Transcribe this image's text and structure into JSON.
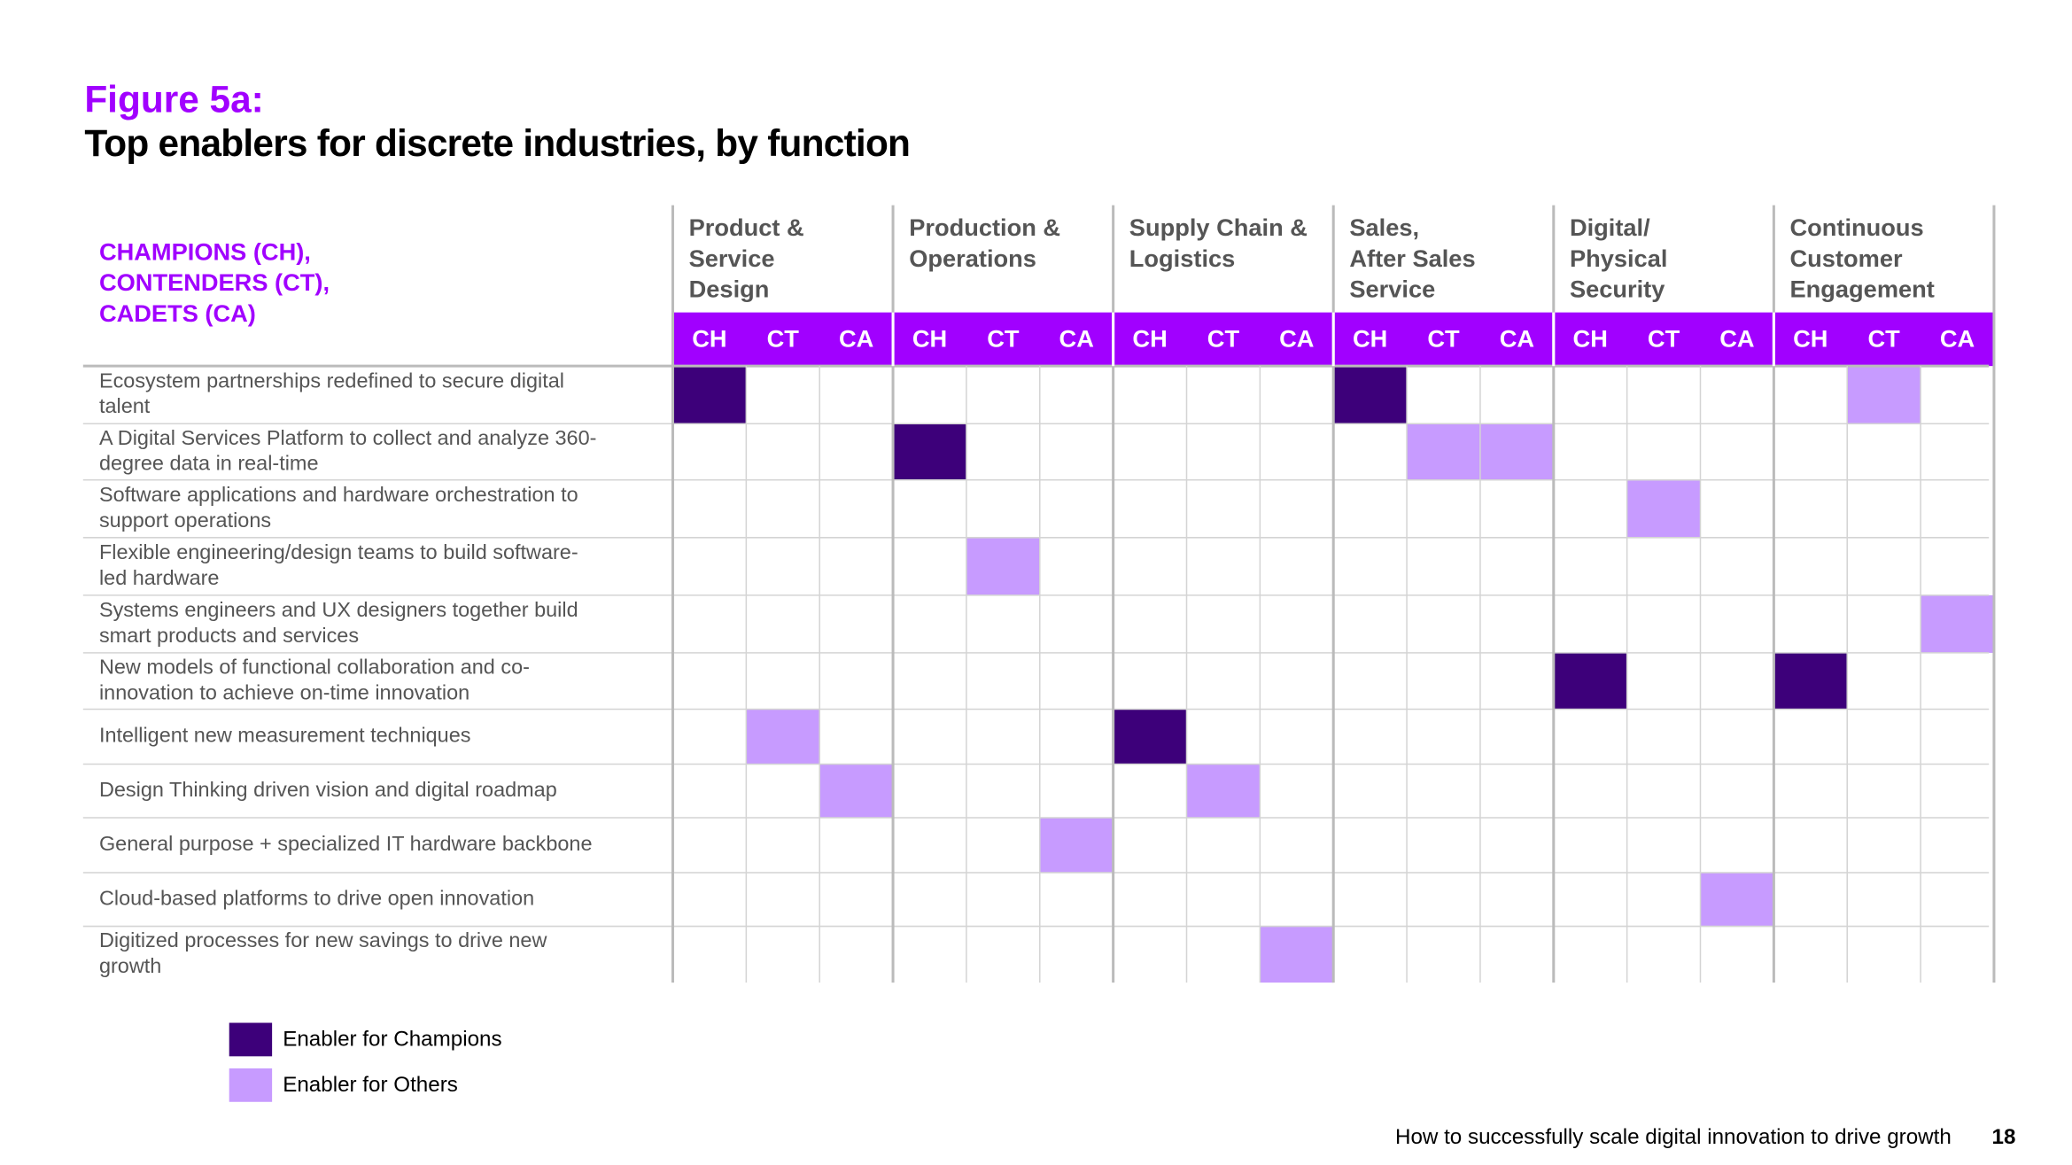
{
  "header": {
    "label": "Figure 5a:",
    "title": "Top enablers for discrete industries, by function"
  },
  "table": {
    "corner": [
      "CHAMPIONS (CH),",
      "CONTENDERS (CT),",
      "CADETS (CA)"
    ],
    "groups": [
      [
        "Product &",
        "Service",
        "Design"
      ],
      [
        "Production &",
        "Operations"
      ],
      [
        "Supply Chain &",
        "Logistics"
      ],
      [
        "Sales,",
        "After Sales",
        "Service"
      ],
      [
        "Digital/",
        "Physical",
        "Security"
      ],
      [
        "Continuous",
        "Customer",
        "Engagement"
      ]
    ],
    "subcolumns": [
      "CH",
      "CT",
      "CA"
    ],
    "rows": [
      {
        "label": [
          "Ecosystem partnerships redefined to secure digital",
          "talent"
        ],
        "cells": [
          "champions",
          null,
          null,
          null,
          null,
          null,
          null,
          null,
          null,
          "champions",
          null,
          null,
          null,
          null,
          null,
          null,
          "others",
          null
        ]
      },
      {
        "label": [
          "A Digital Services Platform to collect and analyze 360-",
          "degree data in real-time"
        ],
        "cells": [
          null,
          null,
          null,
          "champions",
          null,
          null,
          null,
          null,
          null,
          null,
          "others",
          "others",
          null,
          null,
          null,
          null,
          null,
          null
        ]
      },
      {
        "label": [
          "Software applications and hardware orchestration to",
          "support operations"
        ],
        "cells": [
          null,
          null,
          null,
          null,
          null,
          null,
          null,
          null,
          null,
          null,
          null,
          null,
          null,
          "others",
          null,
          null,
          null,
          null
        ]
      },
      {
        "label": [
          "Flexible engineering/design teams to build software-",
          "led hardware"
        ],
        "cells": [
          null,
          null,
          null,
          null,
          "others",
          null,
          null,
          null,
          null,
          null,
          null,
          null,
          null,
          null,
          null,
          null,
          null,
          null
        ]
      },
      {
        "label": [
          "Systems engineers and UX designers together build",
          "smart products and services"
        ],
        "cells": [
          null,
          null,
          null,
          null,
          null,
          null,
          null,
          null,
          null,
          null,
          null,
          null,
          null,
          null,
          null,
          null,
          null,
          "others"
        ]
      },
      {
        "label": [
          "New models of functional collaboration and co-",
          "innovation to achieve on-time innovation"
        ],
        "cells": [
          null,
          null,
          null,
          null,
          null,
          null,
          null,
          null,
          null,
          null,
          null,
          null,
          "champions",
          null,
          null,
          "champions",
          null,
          null
        ]
      },
      {
        "label": [
          "Intelligent new measurement techniques"
        ],
        "cells": [
          null,
          "others",
          null,
          null,
          null,
          null,
          "champions",
          null,
          null,
          null,
          null,
          null,
          null,
          null,
          null,
          null,
          null,
          null
        ]
      },
      {
        "label": [
          "Design Thinking driven vision and digital roadmap"
        ],
        "cells": [
          null,
          null,
          "others",
          null,
          null,
          null,
          null,
          "others",
          null,
          null,
          null,
          null,
          null,
          null,
          null,
          null,
          null,
          null
        ]
      },
      {
        "label": [
          "General purpose + specialized IT hardware backbone"
        ],
        "cells": [
          null,
          null,
          null,
          null,
          null,
          "others",
          null,
          null,
          null,
          null,
          null,
          null,
          null,
          null,
          null,
          null,
          null,
          null
        ]
      },
      {
        "label": [
          "Cloud-based platforms to drive open innovation"
        ],
        "cells": [
          null,
          null,
          null,
          null,
          null,
          null,
          null,
          null,
          null,
          null,
          null,
          null,
          null,
          null,
          "others",
          null,
          null,
          null
        ]
      },
      {
        "label": [
          "Digitized processes for new savings to drive new",
          "growth"
        ],
        "cells": [
          null,
          null,
          null,
          null,
          null,
          null,
          null,
          null,
          "others",
          null,
          null,
          null,
          null,
          null,
          null,
          null,
          null,
          null
        ]
      }
    ]
  },
  "legend": {
    "champions": {
      "label": "Enabler for Champions",
      "color": "#3d007a"
    },
    "others": {
      "label": "Enabler for Others",
      "color": "#c79bff"
    }
  },
  "footer": {
    "text": "How to successfully scale digital innovation to drive growth",
    "page": "18"
  }
}
